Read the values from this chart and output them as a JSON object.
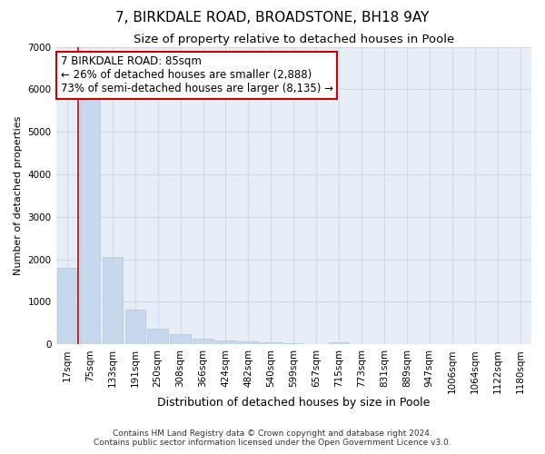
{
  "title": "7, BIRKDALE ROAD, BROADSTONE, BH18 9AY",
  "subtitle": "Size of property relative to detached houses in Poole",
  "xlabel": "Distribution of detached houses by size in Poole",
  "ylabel": "Number of detached properties",
  "footnote1": "Contains HM Land Registry data © Crown copyright and database right 2024.",
  "footnote2": "Contains public sector information licensed under the Open Government Licence v3.0.",
  "annotation_line1": "7 BIRKDALE ROAD: 85sqm",
  "annotation_line2": "← 26% of detached houses are smaller (2,888)",
  "annotation_line3": "73% of semi-detached houses are larger (8,135) →",
  "bar_labels": [
    "17sqm",
    "75sqm",
    "133sqm",
    "191sqm",
    "250sqm",
    "308sqm",
    "366sqm",
    "424sqm",
    "482sqm",
    "540sqm",
    "599sqm",
    "657sqm",
    "715sqm",
    "773sqm",
    "831sqm",
    "889sqm",
    "947sqm",
    "1006sqm",
    "1064sqm",
    "1122sqm",
    "1180sqm"
  ],
  "bar_values": [
    1800,
    5750,
    2050,
    820,
    370,
    250,
    140,
    100,
    70,
    50,
    30,
    0,
    50,
    0,
    0,
    0,
    0,
    0,
    0,
    0,
    0
  ],
  "bar_color": "#c8d8ec",
  "bar_edge_color": "#b0c4de",
  "red_line_x": 0.5,
  "ylim": [
    0,
    7000
  ],
  "yticks": [
    0,
    1000,
    2000,
    3000,
    4000,
    5000,
    6000,
    7000
  ],
  "grid_color": "#d0d8e8",
  "background_color": "#e8eef8",
  "annotation_box_color": "#ffffff",
  "annotation_border_color": "#cc0000",
  "title_fontsize": 11,
  "subtitle_fontsize": 9.5,
  "xlabel_fontsize": 9,
  "ylabel_fontsize": 8,
  "tick_fontsize": 7.5,
  "annotation_fontsize": 8.5,
  "footnote_fontsize": 6.5
}
